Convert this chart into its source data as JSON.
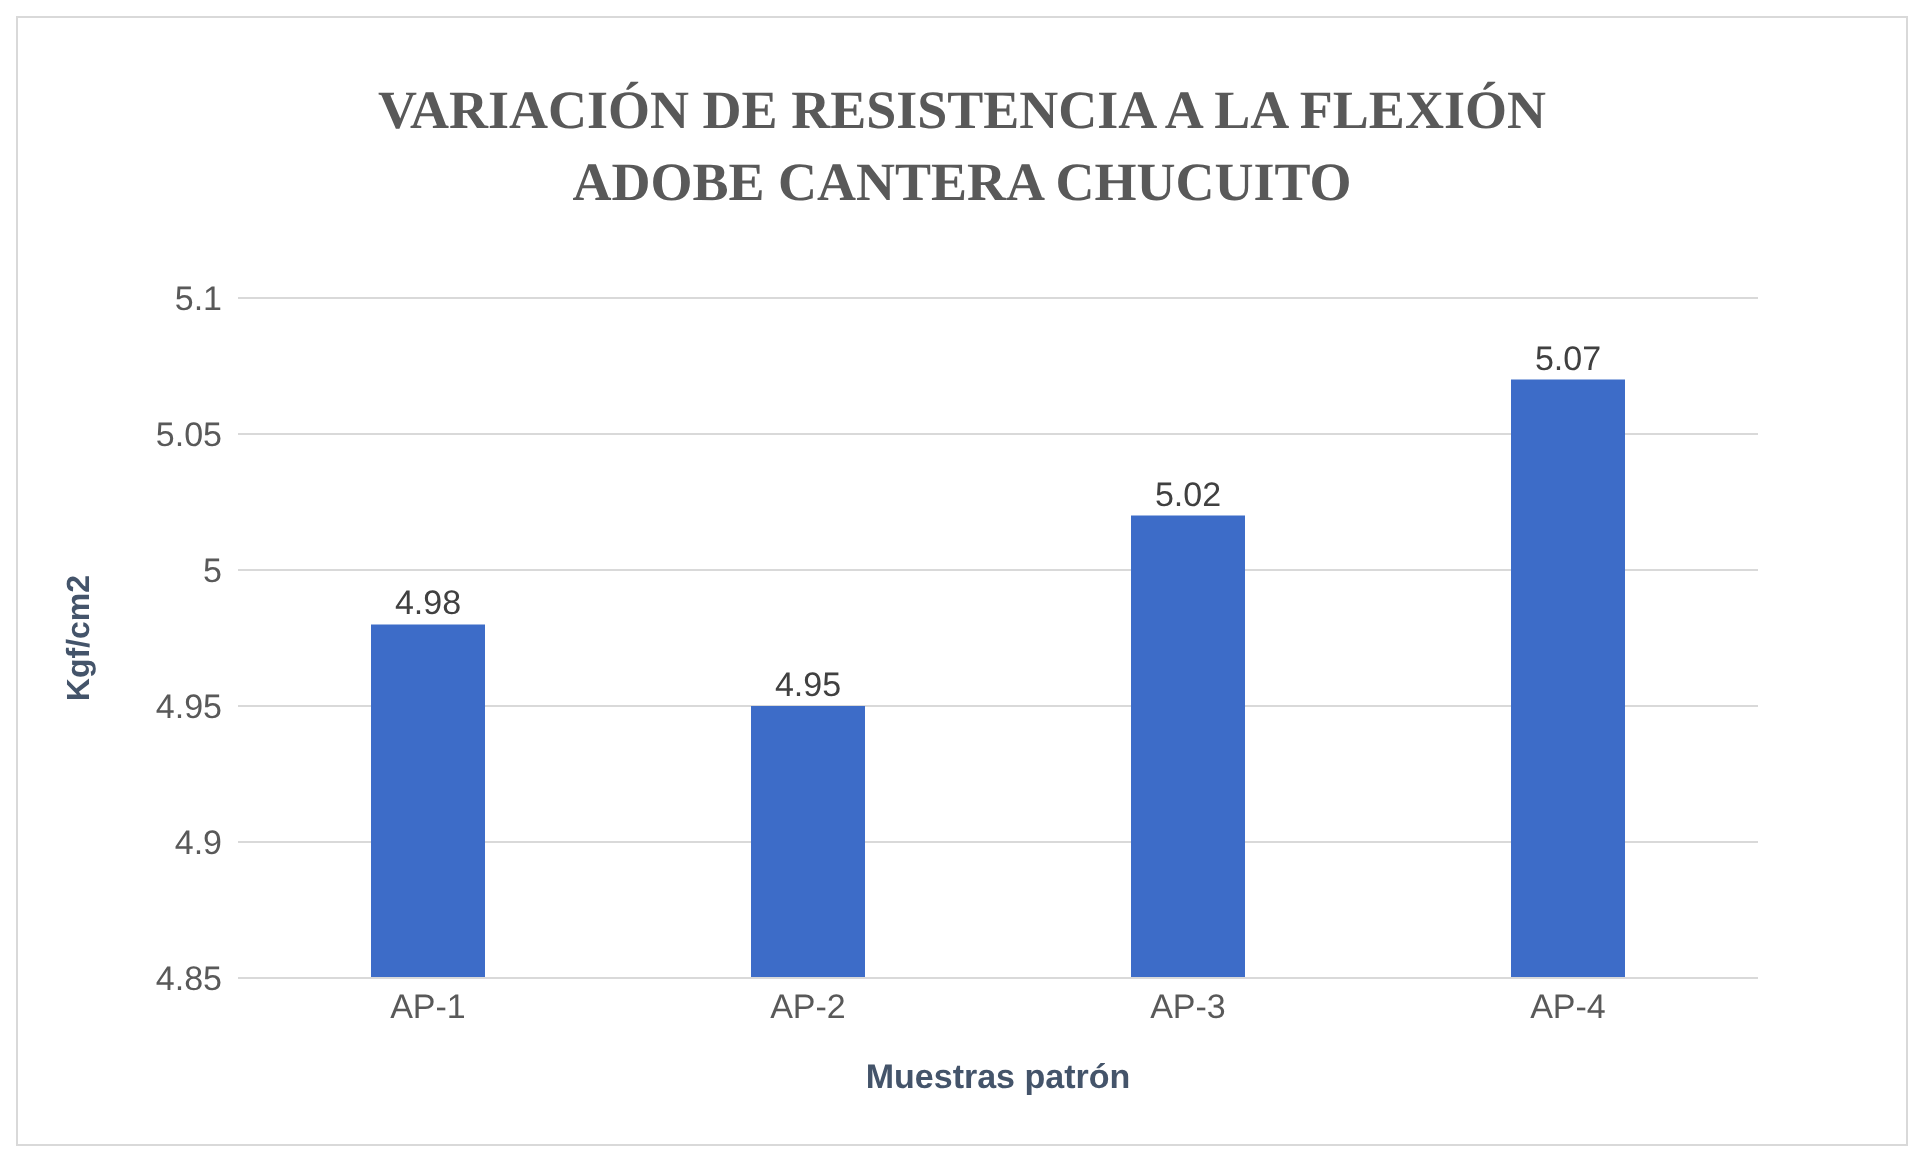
{
  "chart_data": {
    "type": "bar",
    "title": "VARIACIÓN DE RESISTENCIA A LA FLEXIÓN\nADOBE CANTERA CHUCUITO",
    "xlabel": "Muestras patrón",
    "ylabel": "Kgf/cm2",
    "categories": [
      "AP-1",
      "AP-2",
      "AP-3",
      "AP-4"
    ],
    "values": [
      4.98,
      4.95,
      5.02,
      5.07
    ],
    "color": "#3d6cc8",
    "ylim": [
      4.85,
      5.1
    ],
    "yticks": [
      4.85,
      4.9,
      4.95,
      5,
      5.05,
      5.1
    ],
    "grid": "y",
    "data_labels": true
  }
}
